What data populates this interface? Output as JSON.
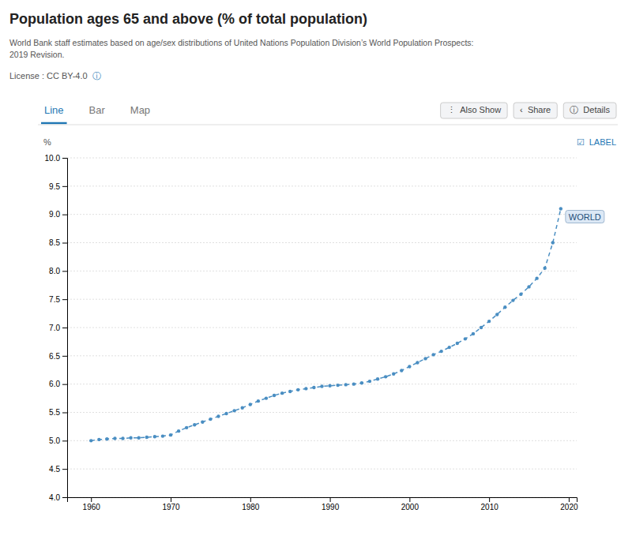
{
  "chart_data": {
    "type": "line",
    "title": "Population ages 65 and above (% of total population)",
    "subtitle": [
      "World Bank staff estimates based on age/sex distributions of United Nations Population Division’s World Population Prospects:",
      "2019 Revision."
    ],
    "license": "License : CC BY-4.0",
    "license_icon": "ⓘ",
    "tabs": [
      "Line",
      "Bar",
      "Map"
    ],
    "buttons": [
      "⋮  Also Show",
      "‹  Share",
      "ⓘ  Details"
    ],
    "checkbox": "☑  LABEL",
    "y_label": "%",
    "annotations": [
      "WORLD"
    ],
    "color": "#4a8ec2",
    "line_style": "dashed",
    "marker": "circle",
    "grid": true,
    "xlim": [
      1957,
      2021
    ],
    "xticks": [
      1960,
      1970,
      1980,
      1990,
      2000,
      2010,
      2020
    ],
    "ylim": [
      4.0,
      10.0
    ],
    "yticks": [
      {
        "value": 4.0,
        "label": "4.0"
      },
      {
        "value": 4.5,
        "label": "4.5"
      },
      {
        "value": 5.0,
        "label": "5.0"
      },
      {
        "value": 5.5,
        "label": "5.5"
      },
      {
        "value": 6.0,
        "label": "6.0"
      },
      {
        "value": 6.5,
        "label": "6.5"
      },
      {
        "value": 7.0,
        "label": "7.0"
      },
      {
        "value": 7.5,
        "label": "7.5"
      },
      {
        "value": 8.0,
        "label": "8.0"
      },
      {
        "value": 8.5,
        "label": "8.5"
      },
      {
        "value": 9.0,
        "label": "9.0"
      },
      {
        "value": 9.5,
        "label": "9.5"
      },
      {
        "value": 10.0,
        "label": "10.0"
      }
    ],
    "x": [
      1960,
      1961,
      1962,
      1963,
      1964,
      1965,
      1966,
      1967,
      1968,
      1969,
      1970,
      1971,
      1972,
      1973,
      1974,
      1975,
      1976,
      1977,
      1978,
      1979,
      1980,
      1981,
      1982,
      1983,
      1984,
      1985,
      1986,
      1987,
      1988,
      1989,
      1990,
      1991,
      1992,
      1993,
      1994,
      1995,
      1996,
      1997,
      1998,
      1999,
      2000,
      2001,
      2002,
      2003,
      2004,
      2005,
      2006,
      2007,
      2008,
      2009,
      2010,
      2011,
      2012,
      2013,
      2014,
      2015,
      2016,
      2017,
      2018,
      2019
    ],
    "values": [
      5.0,
      5.02,
      5.03,
      5.04,
      5.04,
      5.05,
      5.05,
      5.06,
      5.07,
      5.08,
      5.1,
      5.17,
      5.23,
      5.28,
      5.33,
      5.38,
      5.43,
      5.48,
      5.53,
      5.58,
      5.64,
      5.7,
      5.75,
      5.8,
      5.84,
      5.87,
      5.9,
      5.92,
      5.94,
      5.96,
      5.97,
      5.98,
      5.99,
      6.0,
      6.02,
      6.05,
      6.09,
      6.13,
      6.18,
      6.24,
      6.31,
      6.38,
      6.45,
      6.52,
      6.58,
      6.65,
      6.72,
      6.8,
      6.89,
      7.0,
      7.11,
      7.23,
      7.36,
      7.48,
      7.59,
      7.72,
      7.87,
      8.05,
      8.5,
      9.1
    ]
  }
}
